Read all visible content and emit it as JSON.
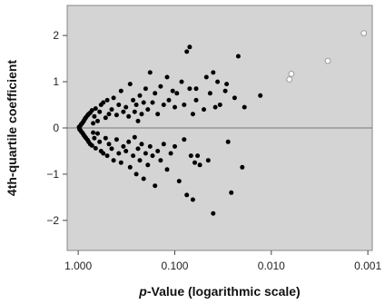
{
  "chart_data": {
    "type": "scatter",
    "title": "",
    "xlabel_prefix": "p",
    "xlabel_rest": "-Value (logarithmic scale)",
    "ylabel": "4th-quartile coefficient",
    "x_scale": "log10, reversed",
    "xlim": [
      1.3,
      0.0009
    ],
    "ylim": [
      -2.65,
      2.65
    ],
    "x_ticks": [
      1.0,
      0.1,
      0.01,
      0.001
    ],
    "x_tick_labels": [
      "1.000",
      "0.100",
      "0.010",
      "0.001"
    ],
    "y_ticks": [
      -2,
      -1,
      0,
      1,
      2
    ],
    "y_tick_labels": [
      "−2",
      "−1",
      "0",
      "1",
      "2"
    ],
    "reference_line_y": 0,
    "plot_background": "#d4d4d4",
    "grid": false,
    "series": [
      {
        "marker": "filled-circle",
        "color": "#000000",
        "points": [
          [
            0.98,
            0.02
          ],
          [
            0.97,
            -0.03
          ],
          [
            0.95,
            0.05
          ],
          [
            0.95,
            -0.05
          ],
          [
            0.93,
            0.08
          ],
          [
            0.93,
            -0.08
          ],
          [
            0.91,
            0.1
          ],
          [
            0.91,
            -0.1
          ],
          [
            0.89,
            0.13
          ],
          [
            0.89,
            -0.13
          ],
          [
            0.87,
            0.16
          ],
          [
            0.87,
            -0.16
          ],
          [
            0.85,
            0.2
          ],
          [
            0.85,
            -0.19
          ],
          [
            0.83,
            0.23
          ],
          [
            0.83,
            -0.22
          ],
          [
            0.8,
            0.27
          ],
          [
            0.8,
            -0.26
          ],
          [
            0.78,
            0.3
          ],
          [
            0.78,
            -0.3
          ],
          [
            0.75,
            0.33
          ],
          [
            0.75,
            -0.35
          ],
          [
            0.72,
            0.38
          ],
          [
            0.72,
            -0.38
          ],
          [
            0.7,
            0.1
          ],
          [
            0.7,
            -0.1
          ],
          [
            0.68,
            0.25
          ],
          [
            0.68,
            -0.22
          ],
          [
            0.66,
            0.42
          ],
          [
            0.66,
            -0.44
          ],
          [
            0.63,
            0.15
          ],
          [
            0.63,
            -0.12
          ],
          [
            0.6,
            0.35
          ],
          [
            0.6,
            -0.3
          ],
          [
            0.58,
            0.5
          ],
          [
            0.58,
            -0.5
          ],
          [
            0.55,
            0.55
          ],
          [
            0.55,
            -0.55
          ],
          [
            0.52,
            0.22
          ],
          [
            0.52,
            -0.22
          ],
          [
            0.5,
            0.6
          ],
          [
            0.5,
            -0.6
          ],
          [
            0.48,
            0.3
          ],
          [
            0.48,
            -0.35
          ],
          [
            0.45,
            0.4
          ],
          [
            0.45,
            -0.45
          ],
          [
            0.43,
            0.65
          ],
          [
            0.43,
            -0.7
          ],
          [
            0.4,
            0.28
          ],
          [
            0.4,
            -0.25
          ],
          [
            0.38,
            0.5
          ],
          [
            0.38,
            -0.55
          ],
          [
            0.36,
            0.8
          ],
          [
            0.36,
            -0.75
          ],
          [
            0.34,
            0.35
          ],
          [
            0.34,
            -0.4
          ],
          [
            0.32,
            0.45
          ],
          [
            0.32,
            -0.5
          ],
          [
            0.3,
            0.25
          ],
          [
            0.3,
            -0.3
          ],
          [
            0.29,
            0.95
          ],
          [
            0.29,
            -0.85
          ],
          [
            0.27,
            0.6
          ],
          [
            0.27,
            -0.6
          ],
          [
            0.26,
            0.35
          ],
          [
            0.26,
            -0.2
          ],
          [
            0.25,
            0.5
          ],
          [
            0.25,
            -1.0
          ],
          [
            0.24,
            0.15
          ],
          [
            0.24,
            -0.45
          ],
          [
            0.23,
            0.7
          ],
          [
            0.23,
            -0.7
          ],
          [
            0.22,
            0.3
          ],
          [
            0.22,
            -0.35
          ],
          [
            0.21,
            0.55
          ],
          [
            0.21,
            -1.1
          ],
          [
            0.2,
            0.85
          ],
          [
            0.2,
            -0.55
          ],
          [
            0.19,
            0.4
          ],
          [
            0.19,
            -0.8
          ],
          [
            0.18,
            1.2
          ],
          [
            0.18,
            -0.4
          ],
          [
            0.17,
            0.55
          ],
          [
            0.17,
            -0.6
          ],
          [
            0.16,
            0.75
          ],
          [
            0.16,
            -1.25
          ],
          [
            0.15,
            0.3
          ],
          [
            0.15,
            -0.5
          ],
          [
            0.14,
            0.9
          ],
          [
            0.14,
            -0.7
          ],
          [
            0.13,
            0.5
          ],
          [
            0.13,
            -0.35
          ],
          [
            0.12,
            1.1
          ],
          [
            0.12,
            -0.9
          ],
          [
            0.115,
            0.6
          ],
          [
            0.11,
            -0.55
          ],
          [
            0.105,
            0.8
          ],
          [
            0.1,
            0.45
          ],
          [
            0.1,
            -0.4
          ],
          [
            0.095,
            0.75
          ],
          [
            0.09,
            -1.15
          ],
          [
            0.085,
            1.0
          ],
          [
            0.08,
            0.5
          ],
          [
            0.08,
            -0.25
          ],
          [
            0.075,
            1.65
          ],
          [
            0.07,
            1.75
          ],
          [
            0.075,
            -1.45
          ],
          [
            0.07,
            0.85
          ],
          [
            0.068,
            -0.6
          ],
          [
            0.065,
            -1.55
          ],
          [
            0.065,
            0.3
          ],
          [
            0.062,
            -0.75
          ],
          [
            0.06,
            0.6
          ],
          [
            0.06,
            0.85
          ],
          [
            0.058,
            -0.6
          ],
          [
            0.055,
            -0.8
          ],
          [
            0.05,
            0.4
          ],
          [
            0.047,
            1.1
          ],
          [
            0.045,
            -0.7
          ],
          [
            0.043,
            0.75
          ],
          [
            0.04,
            1.2
          ],
          [
            0.04,
            -1.85
          ],
          [
            0.038,
            0.45
          ],
          [
            0.036,
            1.0
          ],
          [
            0.034,
            0.5
          ],
          [
            0.03,
            0.8
          ],
          [
            0.029,
            0.95
          ],
          [
            0.028,
            -0.3
          ],
          [
            0.026,
            -1.4
          ],
          [
            0.024,
            0.65
          ],
          [
            0.022,
            1.55
          ],
          [
            0.02,
            -0.85
          ],
          [
            0.019,
            0.45
          ],
          [
            0.013,
            0.7
          ]
        ]
      },
      {
        "marker": "open-circle",
        "color": "#ffffff",
        "points": [
          [
            0.0065,
            1.05
          ],
          [
            0.0062,
            1.17
          ],
          [
            0.0026,
            1.45
          ],
          [
            0.0011,
            2.05
          ]
        ]
      }
    ]
  }
}
